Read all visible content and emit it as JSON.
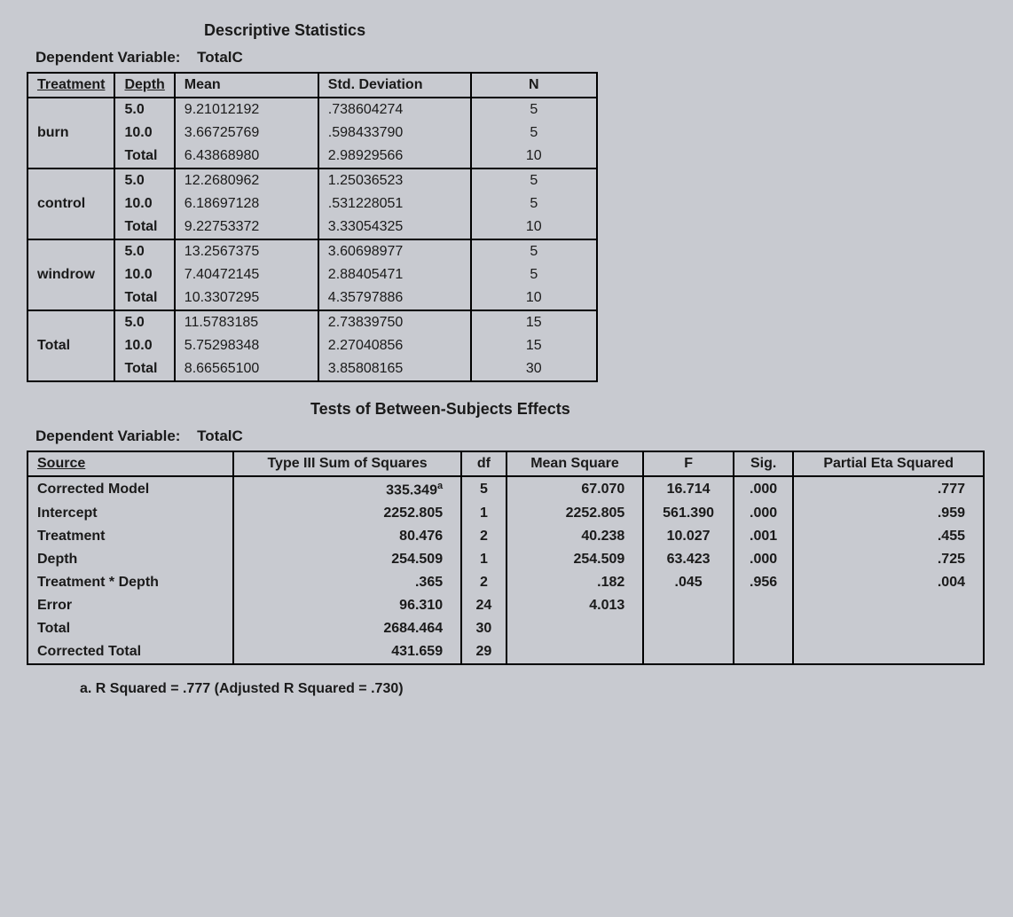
{
  "colors": {
    "background": "#c8cad0",
    "text": "#1a1a1a",
    "border": "#000000"
  },
  "typography": {
    "font_family": "Arial",
    "table_fontsize_pt": 12,
    "title_fontsize_pt": 13
  },
  "descriptive": {
    "title": "Descriptive Statistics",
    "dep_var_label": "Dependent Variable:",
    "dep_var_value": "TotalC",
    "table": {
      "type": "table",
      "columns": [
        "Treatment",
        "Depth",
        "Mean",
        "Std. Deviation",
        "N"
      ],
      "col_align": [
        "left",
        "left",
        "left",
        "left",
        "center"
      ],
      "groups": [
        {
          "treatment": "burn",
          "rows": [
            {
              "depth": "5.0",
              "mean": "9.21012192",
              "sd": ".738604274",
              "n": "5"
            },
            {
              "depth": "10.0",
              "mean": "3.66725769",
              "sd": ".598433790",
              "n": "5"
            },
            {
              "depth": "Total",
              "mean": "6.43868980",
              "sd": "2.98929566",
              "n": "10"
            }
          ]
        },
        {
          "treatment": "control",
          "rows": [
            {
              "depth": "5.0",
              "mean": "12.2680962",
              "sd": "1.25036523",
              "n": "5"
            },
            {
              "depth": "10.0",
              "mean": "6.18697128",
              "sd": ".531228051",
              "n": "5"
            },
            {
              "depth": "Total",
              "mean": "9.22753372",
              "sd": "3.33054325",
              "n": "10"
            }
          ]
        },
        {
          "treatment": "windrow",
          "rows": [
            {
              "depth": "5.0",
              "mean": "13.2567375",
              "sd": "3.60698977",
              "n": "5"
            },
            {
              "depth": "10.0",
              "mean": "7.40472145",
              "sd": "2.88405471",
              "n": "5"
            },
            {
              "depth": "Total",
              "mean": "10.3307295",
              "sd": "4.35797886",
              "n": "10"
            }
          ]
        },
        {
          "treatment": "Total",
          "rows": [
            {
              "depth": "5.0",
              "mean": "11.5783185",
              "sd": "2.73839750",
              "n": "15"
            },
            {
              "depth": "10.0",
              "mean": "5.75298348",
              "sd": "2.27040856",
              "n": "15"
            },
            {
              "depth": "Total",
              "mean": "8.66565100",
              "sd": "3.85808165",
              "n": "30"
            }
          ]
        }
      ]
    }
  },
  "effects": {
    "title": "Tests of Between-Subjects Effects",
    "dep_var_label": "Dependent Variable:",
    "dep_var_value": "TotalC",
    "table": {
      "type": "table",
      "columns": [
        "Source",
        "Type III Sum of Squares",
        "df",
        "Mean Square",
        "F",
        "Sig.",
        "Partial Eta Squared"
      ],
      "col_align": [
        "left",
        "right",
        "center",
        "right",
        "center",
        "center",
        "right"
      ],
      "rows": [
        {
          "source": "Corrected Model",
          "ss": "335.349",
          "ss_sup": "a",
          "df": "5",
          "ms": "67.070",
          "f": "16.714",
          "sig": ".000",
          "pes": ".777"
        },
        {
          "source": "Intercept",
          "ss": "2252.805",
          "df": "1",
          "ms": "2252.805",
          "f": "561.390",
          "sig": ".000",
          "pes": ".959"
        },
        {
          "source": "Treatment",
          "ss": "80.476",
          "df": "2",
          "ms": "40.238",
          "f": "10.027",
          "sig": ".001",
          "pes": ".455"
        },
        {
          "source": "Depth",
          "ss": "254.509",
          "df": "1",
          "ms": "254.509",
          "f": "63.423",
          "sig": ".000",
          "pes": ".725"
        },
        {
          "source": "Treatment * Depth",
          "ss": ".365",
          "df": "2",
          "ms": ".182",
          "f": ".045",
          "sig": ".956",
          "pes": ".004"
        },
        {
          "source": "Error",
          "ss": "96.310",
          "df": "24",
          "ms": "4.013",
          "f": "",
          "sig": "",
          "pes": ""
        },
        {
          "source": "Total",
          "ss": "2684.464",
          "df": "30",
          "ms": "",
          "f": "",
          "sig": "",
          "pes": ""
        },
        {
          "source": "Corrected Total",
          "ss": "431.659",
          "df": "29",
          "ms": "",
          "f": "",
          "sig": "",
          "pes": ""
        }
      ]
    },
    "footnote": "a. R Squared = .777 (Adjusted R Squared = .730)"
  }
}
